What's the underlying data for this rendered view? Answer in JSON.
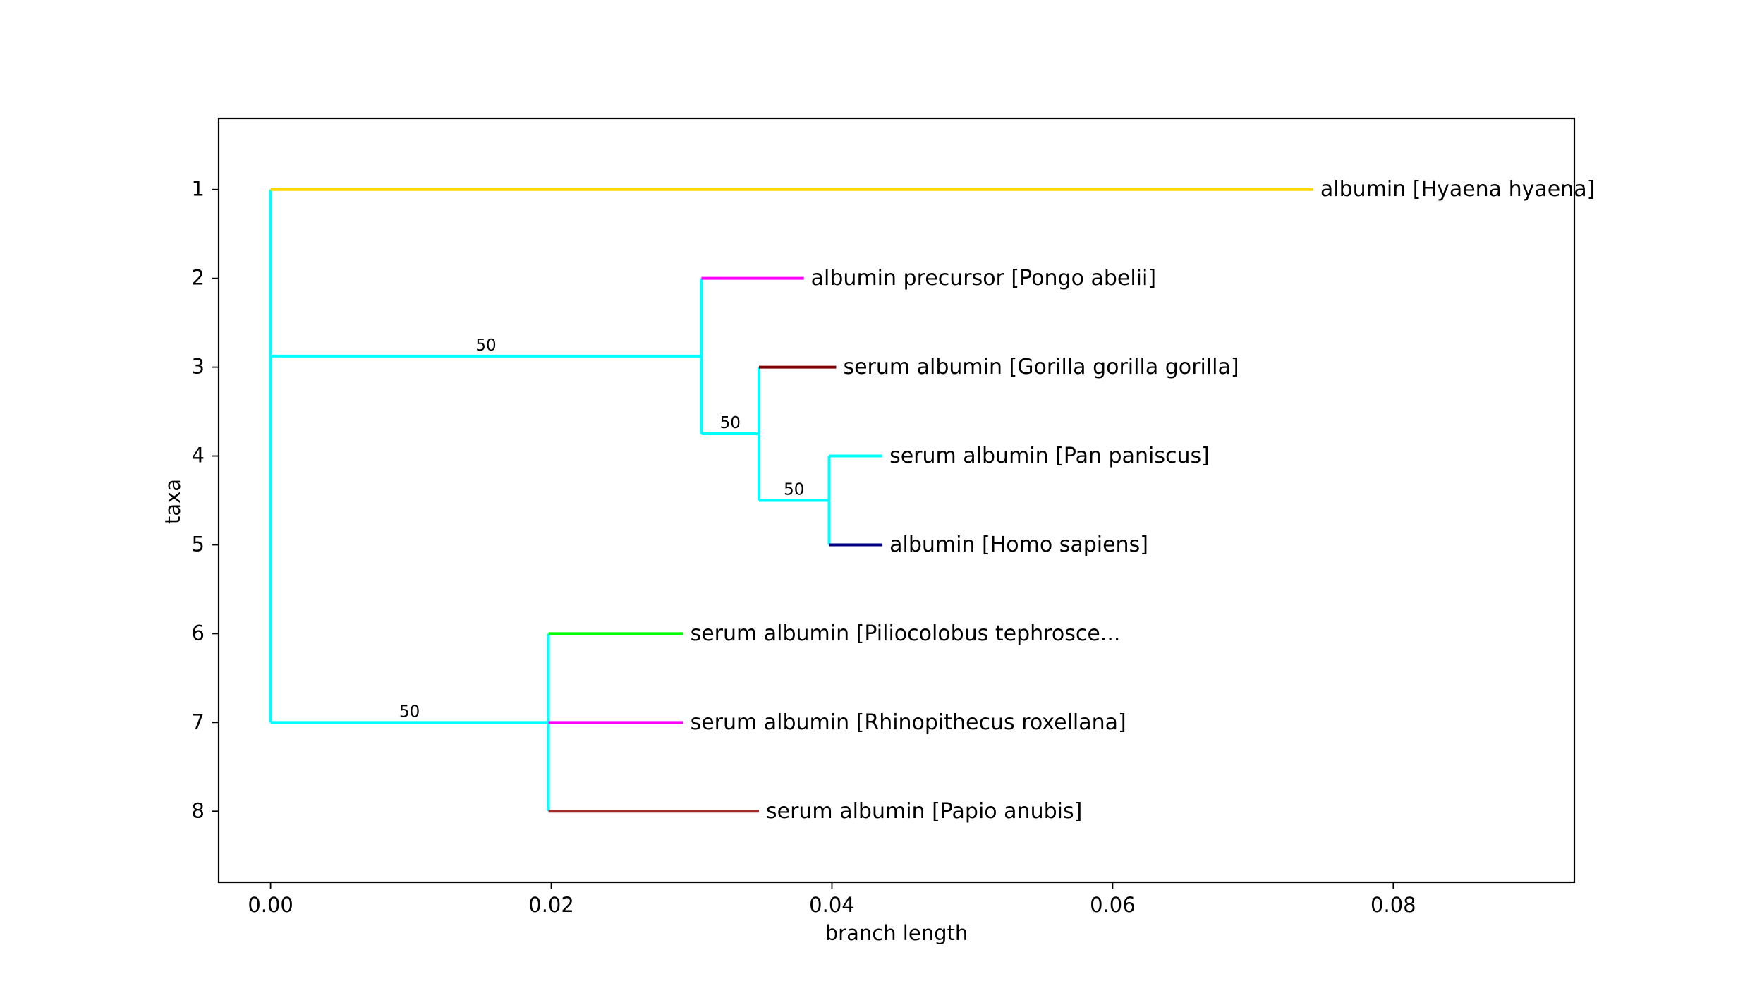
{
  "chart_data": {
    "type": "phylogenetic-tree",
    "title": "",
    "xlabel": "branch length",
    "ylabel": "taxa",
    "xlim": [
      -0.0037,
      0.0929
    ],
    "ylim": [
      8.8,
      0.2
    ],
    "xticks": [
      0.0,
      0.02,
      0.04,
      0.06,
      0.08
    ],
    "xtick_labels": [
      "0.00",
      "0.02",
      "0.04",
      "0.06",
      "0.08"
    ],
    "yticks": [
      1,
      2,
      3,
      4,
      5,
      6,
      7,
      8
    ],
    "ytick_labels": [
      "1",
      "2",
      "3",
      "4",
      "5",
      "6",
      "7",
      "8"
    ],
    "grid": false,
    "leaves": [
      {
        "name": "albumin [Hyaena hyaena]",
        "y": 1,
        "x_start": 0.0,
        "x_end": 0.0743,
        "color": "#ffd700"
      },
      {
        "name": "albumin precursor [Pongo abelii]",
        "y": 2,
        "x_start": 0.0307,
        "x_end": 0.038,
        "color": "#ff00ff"
      },
      {
        "name": "serum albumin [Gorilla gorilla gorilla]",
        "y": 3,
        "x_start": 0.0348,
        "x_end": 0.0403,
        "color": "#800000"
      },
      {
        "name": "serum albumin [Pan paniscus]",
        "y": 4,
        "x_start": 0.0398,
        "x_end": 0.0436,
        "color": "#00ffff"
      },
      {
        "name": "albumin [Homo sapiens]",
        "y": 5,
        "x_start": 0.0398,
        "x_end": 0.0436,
        "color": "#000080"
      },
      {
        "name": "serum albumin [Piliocolobus tephrosce...",
        "y": 6,
        "x_start": 0.0198,
        "x_end": 0.0294,
        "color": "#00ff00"
      },
      {
        "name": "serum albumin [Rhinopithecus roxellana]",
        "y": 7,
        "x_start": 0.0198,
        "x_end": 0.0294,
        "color": "#ff00ff"
      },
      {
        "name": "serum albumin [Papio anubis]",
        "y": 8,
        "x_start": 0.0198,
        "x_end": 0.0348,
        "color": "#a52a2a"
      }
    ],
    "internal_branches": [
      {
        "y": 2.875,
        "x_start": 0.0,
        "x_end": 0.0307,
        "color": "#00ffff",
        "support": "50"
      },
      {
        "y": 3.75,
        "x_start": 0.0307,
        "x_end": 0.0348,
        "color": "#00ffff",
        "support": "50"
      },
      {
        "y": 4.5,
        "x_start": 0.0348,
        "x_end": 0.0398,
        "color": "#00ffff",
        "support": "50"
      },
      {
        "y": 7,
        "x_start": 0.0,
        "x_end": 0.0198,
        "color": "#00ffff",
        "support": "50"
      }
    ],
    "vertical_connectors": [
      {
        "x": 0.0,
        "y_start": 1,
        "y_end": 7,
        "color": "#00ffff"
      },
      {
        "x": 0.0307,
        "y_start": 2,
        "y_end": 3.75,
        "color": "#00ffff"
      },
      {
        "x": 0.0348,
        "y_start": 3,
        "y_end": 4.5,
        "color": "#00ffff"
      },
      {
        "x": 0.0398,
        "y_start": 4,
        "y_end": 5,
        "color": "#00ffff"
      },
      {
        "x": 0.0198,
        "y_start": 6,
        "y_end": 8,
        "color": "#00ffff"
      }
    ]
  }
}
